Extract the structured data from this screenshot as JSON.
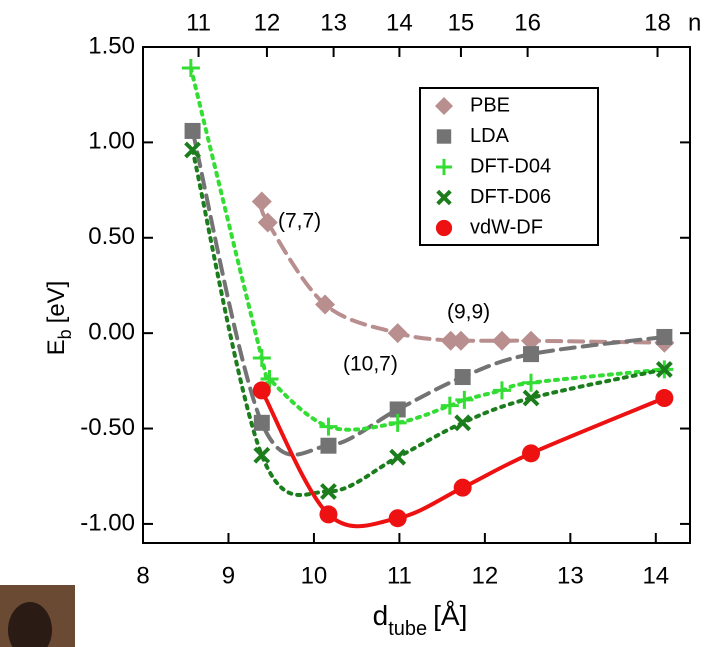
{
  "chart_data": {
    "type": "scatter",
    "x_label": {
      "main": "d",
      "sub": "tube",
      "unit": "[Å]"
    },
    "y_label": {
      "main": "E",
      "sub": "b",
      "unit": "[eV]"
    },
    "x2_label": "n",
    "xlim": [
      8,
      14.4
    ],
    "ylim": [
      -1.1,
      1.5
    ],
    "xticks": [
      8,
      9,
      10,
      11,
      12,
      13,
      14
    ],
    "yticks": [
      {
        "value": -1.0,
        "label": "-1.00"
      },
      {
        "value": -0.5,
        "label": "-0.50"
      },
      {
        "value": 0,
        "label": "0.00"
      },
      {
        "value": 0.5,
        "label": "0.50"
      },
      {
        "value": 1.0,
        "label": "1.00"
      },
      {
        "value": 1.5,
        "label": "1.50"
      }
    ],
    "x2ticks": [
      {
        "value": 8.65,
        "label": "11"
      },
      {
        "value": 9.45,
        "label": "12"
      },
      {
        "value": 10.23,
        "label": "13"
      },
      {
        "value": 11.0,
        "label": "14"
      },
      {
        "value": 11.72,
        "label": "15"
      },
      {
        "value": 12.5,
        "label": "16"
      },
      {
        "value": 14.02,
        "label": "18"
      }
    ],
    "legend_position": "upper right",
    "annotations": [
      "(7,7)",
      "(9,9)",
      "(10,7)"
    ],
    "series": [
      {
        "name": "PBE",
        "color": "#b88e8e",
        "marker": "diamond",
        "line_style": "dashed",
        "x": [
          9.39,
          9.46,
          10.13,
          10.98,
          11.6,
          11.72,
          12.2,
          12.54,
          14.1
        ],
        "values": [
          0.69,
          0.58,
          0.15,
          0.0,
          -0.04,
          -0.04,
          -0.04,
          -0.04,
          -0.05
        ]
      },
      {
        "name": "LDA",
        "color": "#737373",
        "marker": "square",
        "line_style": "dashed",
        "x": [
          8.58,
          9.39,
          10.17,
          10.98,
          11.74,
          12.54,
          14.1
        ],
        "values": [
          1.06,
          -0.47,
          -0.59,
          -0.4,
          -0.23,
          -0.11,
          -0.02
        ]
      },
      {
        "name": "DFT-D04",
        "color": "#33dd33",
        "marker": "plus",
        "line_style": "dotted",
        "x": [
          8.56,
          9.39,
          9.48,
          10.17,
          10.98,
          11.59,
          11.76,
          12.2,
          12.54,
          14.1
        ],
        "values": [
          1.39,
          -0.13,
          -0.24,
          -0.49,
          -0.47,
          -0.38,
          -0.35,
          -0.3,
          -0.26,
          -0.19
        ]
      },
      {
        "name": "DFT-D06",
        "color": "#1c7d1c",
        "marker": "cross",
        "line_style": "dotted",
        "x": [
          8.58,
          9.39,
          10.17,
          10.98,
          11.74,
          12.54,
          14.1
        ],
        "values": [
          0.96,
          -0.64,
          -0.83,
          -0.65,
          -0.47,
          -0.34,
          -0.19
        ]
      },
      {
        "name": "vdW-DF",
        "color": "#ee1111",
        "marker": "circle",
        "line_style": "solid",
        "x": [
          9.39,
          10.17,
          10.98,
          11.74,
          12.54,
          14.1
        ],
        "values": [
          -0.3,
          -0.95,
          -0.97,
          -0.81,
          -0.63,
          -0.34
        ]
      }
    ]
  }
}
